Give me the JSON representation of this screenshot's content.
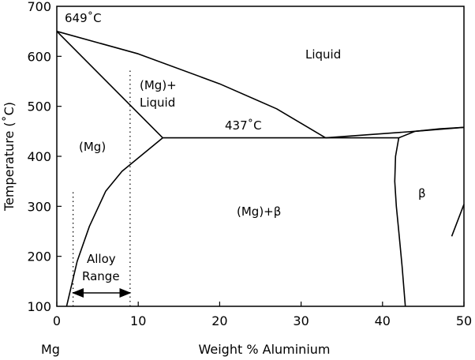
{
  "chart_data": {
    "type": "phase-diagram",
    "title": "",
    "xlabel": "Weight % Aluminium",
    "ylabel": "Temperature (˚C)",
    "x_origin_label": "Mg",
    "xlim": [
      0,
      50
    ],
    "ylim": [
      100,
      700
    ],
    "xticks": [
      0,
      10,
      20,
      30,
      40,
      50
    ],
    "yticks": [
      100,
      200,
      300,
      400,
      500,
      600,
      700
    ],
    "grid": false,
    "phase_boundaries": [
      {
        "name": "liquidus-mg",
        "points": [
          [
            0,
            650
          ],
          [
            13,
            437
          ]
        ]
      },
      {
        "name": "liquidus-beta",
        "points": [
          [
            0,
            650
          ],
          [
            10,
            605
          ],
          [
            20,
            545
          ],
          [
            27,
            495
          ],
          [
            33,
            437
          ]
        ]
      },
      {
        "name": "eutectic-line",
        "points": [
          [
            13,
            437
          ],
          [
            42,
            437
          ]
        ]
      },
      {
        "name": "mg-solvus",
        "points": [
          [
            13,
            437
          ],
          [
            8,
            370
          ],
          [
            6,
            330
          ],
          [
            4,
            260
          ],
          [
            2.5,
            190
          ],
          [
            1.2,
            100
          ]
        ]
      },
      {
        "name": "beta-left",
        "points": [
          [
            42,
            437
          ],
          [
            41.6,
            400
          ],
          [
            41.5,
            350
          ],
          [
            41.7,
            300
          ],
          [
            42,
            250
          ],
          [
            42.4,
            180
          ],
          [
            42.8,
            100
          ]
        ]
      },
      {
        "name": "beta-liquidus-low",
        "points": [
          [
            33,
            437
          ],
          [
            38,
            443
          ],
          [
            44,
            450
          ],
          [
            50,
            458
          ]
        ]
      },
      {
        "name": "beta-liquidus-high",
        "points": [
          [
            42,
            437
          ],
          [
            44,
            450
          ],
          [
            47,
            455
          ],
          [
            50,
            458
          ]
        ]
      },
      {
        "name": "beta-right",
        "points": [
          [
            50,
            304
          ],
          [
            48.5,
            240
          ]
        ]
      }
    ],
    "alloy_range_lines": [
      2,
      9
    ],
    "annotations": {
      "melting_point": "649˚C",
      "eutectic": "437˚C",
      "liquid": "Liquid",
      "mg_liquid_1": "(Mg)+",
      "mg_liquid_2": "Liquid",
      "mg": "(Mg)",
      "mg_beta": "(Mg)+β",
      "beta": "β",
      "alloy_1": "Alloy",
      "alloy_2": "Range"
    }
  }
}
